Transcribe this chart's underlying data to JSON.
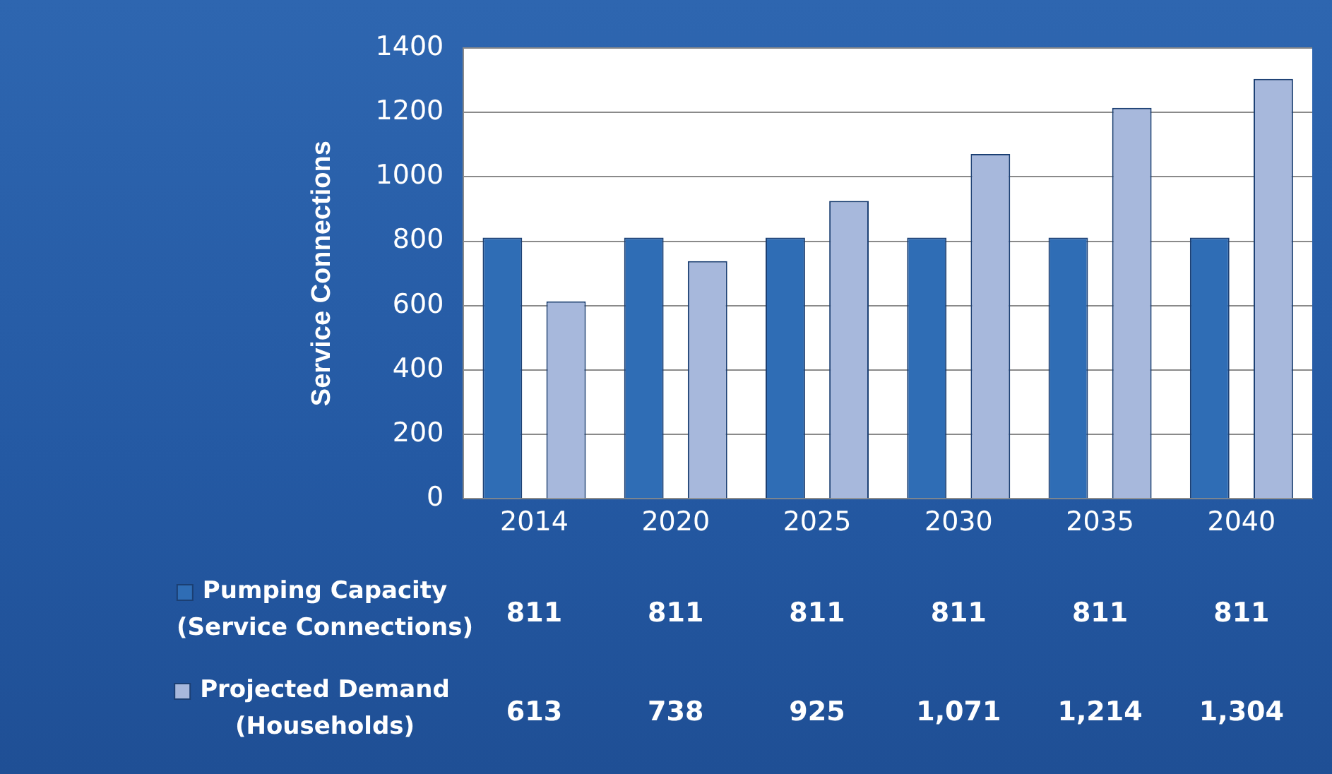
{
  "chart_data": {
    "type": "bar",
    "ylabel": "Service Connections",
    "categories": [
      "2014",
      "2020",
      "2025",
      "2030",
      "2035",
      "2040"
    ],
    "series": [
      {
        "name": "Pumping Capacity (Service Connections)",
        "color": "#2f6db5",
        "values": [
          811,
          811,
          811,
          811,
          811,
          811
        ],
        "value_labels": [
          "811",
          "811",
          "811",
          "811",
          "811",
          "811"
        ]
      },
      {
        "name": "Projected Demand (Households)",
        "color": "#a7b8dc",
        "values": [
          613,
          738,
          925,
          1071,
          1214,
          1304
        ],
        "value_labels": [
          "613",
          "738",
          "925",
          "1,071",
          "1,214",
          "1,304"
        ]
      }
    ],
    "ylim": [
      0,
      1400
    ],
    "yticks": [
      0,
      200,
      400,
      600,
      800,
      1000,
      1200,
      1400
    ],
    "grid": "y",
    "legend": "bottom left"
  }
}
